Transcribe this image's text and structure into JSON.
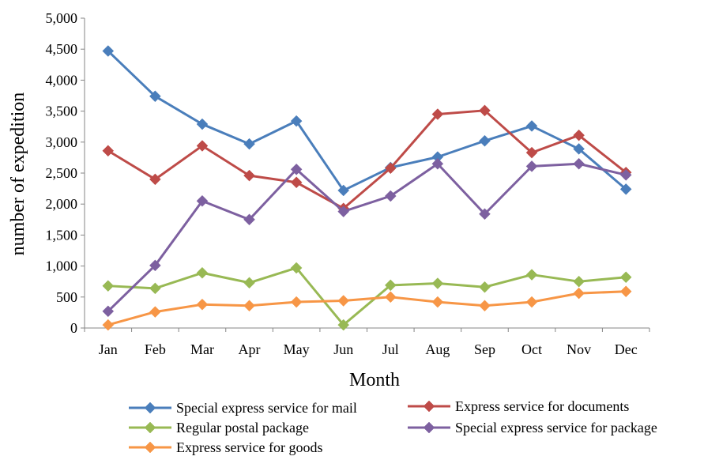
{
  "chart_data": {
    "type": "line",
    "title": "",
    "xlabel": "Month",
    "ylabel": "number of expedition",
    "ylim": [
      0,
      5000
    ],
    "yticks": [
      "0",
      "500",
      "1,000",
      "1,500",
      "2,000",
      "2,500",
      "3,000",
      "3,500",
      "4,000",
      "4,500",
      "5,000"
    ],
    "grid": false,
    "legend_position": "bottom",
    "categories": [
      "Jan",
      "Feb",
      "Mar",
      "Apr",
      "May",
      "Jun",
      "Jul",
      "Aug",
      "Sep",
      "Oct",
      "Nov",
      "Dec"
    ],
    "series": [
      {
        "name": "Special express service for mail",
        "color": "#4a7ebb",
        "values": [
          4470,
          3740,
          3290,
          2970,
          3340,
          2220,
          2590,
          2760,
          3020,
          3260,
          2890,
          2240
        ]
      },
      {
        "name": "Express service for documents",
        "color": "#be4b48",
        "values": [
          2860,
          2400,
          2940,
          2460,
          2350,
          1930,
          2580,
          3450,
          3510,
          2830,
          3110,
          2510
        ]
      },
      {
        "name": "Regular postal package",
        "color": "#98b954",
        "values": [
          680,
          640,
          890,
          730,
          970,
          50,
          690,
          720,
          660,
          860,
          750,
          820
        ]
      },
      {
        "name": "Special express service for package",
        "color": "#7d60a0",
        "values": [
          270,
          1010,
          2050,
          1750,
          2560,
          1880,
          2130,
          2650,
          1840,
          2610,
          2650,
          2470
        ]
      },
      {
        "name": "Express service for goods",
        "color": "#f79646",
        "values": [
          50,
          260,
          380,
          360,
          420,
          440,
          500,
          420,
          360,
          420,
          560,
          590
        ]
      }
    ]
  }
}
